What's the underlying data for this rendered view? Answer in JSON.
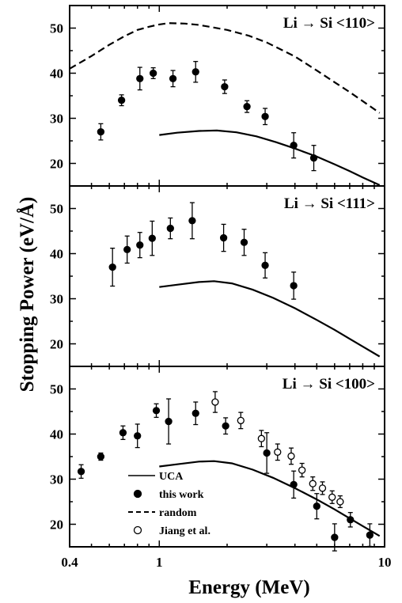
{
  "chart_data": {
    "type": "scatter",
    "xlabel": "Energy (MeV)",
    "ylabel": "Stopping Power (eV/Å)",
    "x_scale": "log",
    "xlim": [
      0.4,
      10
    ],
    "x_ticks": [
      {
        "value": 0.4,
        "label": "0.4"
      },
      {
        "value": 1,
        "label": "1"
      },
      {
        "value": 10,
        "label": "10"
      }
    ],
    "legend": {
      "placement": "lower-left of bottom panel",
      "entries": [
        {
          "label": "UCA",
          "marker": "solid-line"
        },
        {
          "label": "this work",
          "marker": "filled-circle"
        },
        {
          "label": "random",
          "marker": "dashed-line"
        },
        {
          "label": "Jiang et al.",
          "marker": "open-circle"
        }
      ]
    },
    "panels": [
      {
        "label": "Li → Si <110>",
        "ylim": [
          15,
          55
        ],
        "y_ticks": [
          20,
          30,
          40,
          50
        ],
        "series": [
          {
            "name": "this work",
            "marker": "filled-circle",
            "points": [
              {
                "x": 0.55,
                "y": 27.0,
                "err": 1.8
              },
              {
                "x": 0.68,
                "y": 34.0,
                "err": 1.2
              },
              {
                "x": 0.82,
                "y": 38.8,
                "err": 2.5
              },
              {
                "x": 0.94,
                "y": 40.0,
                "err": 1.2
              },
              {
                "x": 1.15,
                "y": 38.8,
                "err": 1.8
              },
              {
                "x": 1.45,
                "y": 40.3,
                "err": 2.3
              },
              {
                "x": 1.95,
                "y": 37.0,
                "err": 1.5
              },
              {
                "x": 2.45,
                "y": 32.6,
                "err": 1.3
              },
              {
                "x": 2.95,
                "y": 30.4,
                "err": 1.8
              },
              {
                "x": 3.95,
                "y": 24.0,
                "err": 2.8
              },
              {
                "x": 4.85,
                "y": 21.2,
                "err": 2.8
              }
            ]
          },
          {
            "name": "random",
            "style": "dashed",
            "points": [
              {
                "x": 0.4,
                "y": 41.0
              },
              {
                "x": 0.5,
                "y": 43.8
              },
              {
                "x": 0.6,
                "y": 46.3
              },
              {
                "x": 0.7,
                "y": 48.2
              },
              {
                "x": 0.8,
                "y": 49.6
              },
              {
                "x": 0.9,
                "y": 50.3
              },
              {
                "x": 1.0,
                "y": 50.8
              },
              {
                "x": 1.1,
                "y": 51.1
              },
              {
                "x": 1.3,
                "y": 51.0
              },
              {
                "x": 1.5,
                "y": 50.7
              },
              {
                "x": 2.0,
                "y": 49.6
              },
              {
                "x": 2.5,
                "y": 48.3
              },
              {
                "x": 3.0,
                "y": 46.8
              },
              {
                "x": 4.0,
                "y": 43.7
              },
              {
                "x": 5.0,
                "y": 40.6
              },
              {
                "x": 6.0,
                "y": 38.0
              },
              {
                "x": 7.0,
                "y": 35.8
              },
              {
                "x": 8.0,
                "y": 33.8
              },
              {
                "x": 9.5,
                "y": 31.2
              }
            ]
          },
          {
            "name": "UCA",
            "style": "solid",
            "points": [
              {
                "x": 1.0,
                "y": 26.3
              },
              {
                "x": 1.2,
                "y": 26.8
              },
              {
                "x": 1.5,
                "y": 27.2
              },
              {
                "x": 1.8,
                "y": 27.3
              },
              {
                "x": 2.2,
                "y": 26.9
              },
              {
                "x": 2.7,
                "y": 26.0
              },
              {
                "x": 3.3,
                "y": 24.7
              },
              {
                "x": 4.0,
                "y": 23.3
              },
              {
                "x": 5.0,
                "y": 21.5
              },
              {
                "x": 6.0,
                "y": 19.8
              },
              {
                "x": 7.0,
                "y": 18.3
              },
              {
                "x": 8.0,
                "y": 16.9
              },
              {
                "x": 9.5,
                "y": 15.2
              }
            ]
          }
        ]
      },
      {
        "label": "Li → Si <111>",
        "ylim": [
          15,
          55
        ],
        "y_ticks": [
          20,
          30,
          40,
          50
        ],
        "series": [
          {
            "name": "this work",
            "marker": "filled-circle",
            "points": [
              {
                "x": 0.62,
                "y": 37.0,
                "err": 4.2
              },
              {
                "x": 0.72,
                "y": 40.9,
                "err": 3.0
              },
              {
                "x": 0.82,
                "y": 41.9,
                "err": 2.8
              },
              {
                "x": 0.93,
                "y": 43.4,
                "err": 3.8
              },
              {
                "x": 1.12,
                "y": 45.6,
                "err": 2.3
              },
              {
                "x": 1.4,
                "y": 47.3,
                "err": 4.0
              },
              {
                "x": 1.93,
                "y": 43.5,
                "err": 3.0
              },
              {
                "x": 2.38,
                "y": 42.5,
                "err": 2.9
              },
              {
                "x": 2.95,
                "y": 37.4,
                "err": 2.8
              },
              {
                "x": 3.95,
                "y": 32.9,
                "err": 3.0
              }
            ]
          },
          {
            "name": "UCA",
            "style": "solid",
            "points": [
              {
                "x": 1.0,
                "y": 32.6
              },
              {
                "x": 1.2,
                "y": 33.1
              },
              {
                "x": 1.5,
                "y": 33.7
              },
              {
                "x": 1.75,
                "y": 33.9
              },
              {
                "x": 2.1,
                "y": 33.4
              },
              {
                "x": 2.6,
                "y": 32.0
              },
              {
                "x": 3.2,
                "y": 30.2
              },
              {
                "x": 4.0,
                "y": 27.9
              },
              {
                "x": 5.0,
                "y": 25.3
              },
              {
                "x": 6.0,
                "y": 23.1
              },
              {
                "x": 7.0,
                "y": 21.1
              },
              {
                "x": 8.0,
                "y": 19.4
              },
              {
                "x": 9.5,
                "y": 17.2
              }
            ]
          }
        ]
      },
      {
        "label": "Li → Si <100>",
        "ylim": [
          15,
          55
        ],
        "y_ticks": [
          20,
          30,
          40,
          50
        ],
        "series": [
          {
            "name": "this work",
            "marker": "filled-circle",
            "points": [
              {
                "x": 0.45,
                "y": 31.7,
                "err": 1.5
              },
              {
                "x": 0.55,
                "y": 35.0,
                "err": 0.8
              },
              {
                "x": 0.69,
                "y": 40.3,
                "err": 1.5
              },
              {
                "x": 0.8,
                "y": 39.6,
                "err": 2.6
              },
              {
                "x": 0.97,
                "y": 45.2,
                "err": 1.5
              },
              {
                "x": 1.1,
                "y": 42.8,
                "err": 5.0
              },
              {
                "x": 1.45,
                "y": 44.6,
                "err": 2.5
              },
              {
                "x": 1.97,
                "y": 41.8,
                "err": 1.8
              },
              {
                "x": 3.0,
                "y": 35.8,
                "err": 4.5
              },
              {
                "x": 3.95,
                "y": 28.8,
                "err": 3.0
              },
              {
                "x": 5.0,
                "y": 24.0,
                "err": 2.8
              },
              {
                "x": 6.0,
                "y": 17.1,
                "err": 3.0
              },
              {
                "x": 7.05,
                "y": 21.0,
                "err": 1.6
              },
              {
                "x": 8.6,
                "y": 17.6,
                "err": 2.5
              }
            ]
          },
          {
            "name": "Jiang et al.",
            "marker": "open-circle",
            "points": [
              {
                "x": 1.77,
                "y": 47.1,
                "err": 2.3
              },
              {
                "x": 2.3,
                "y": 43.0,
                "err": 1.8
              },
              {
                "x": 2.84,
                "y": 39.0,
                "err": 1.8
              },
              {
                "x": 3.35,
                "y": 36.0,
                "err": 1.8
              },
              {
                "x": 3.85,
                "y": 35.1,
                "err": 1.8
              },
              {
                "x": 4.3,
                "y": 32.0,
                "err": 1.5
              },
              {
                "x": 4.8,
                "y": 29.0,
                "err": 1.5
              },
              {
                "x": 5.3,
                "y": 28.0,
                "err": 1.4
              },
              {
                "x": 5.85,
                "y": 26.0,
                "err": 1.4
              },
              {
                "x": 6.35,
                "y": 25.0,
                "err": 1.3
              }
            ]
          },
          {
            "name": "UCA",
            "style": "solid",
            "points": [
              {
                "x": 1.0,
                "y": 32.8
              },
              {
                "x": 1.2,
                "y": 33.3
              },
              {
                "x": 1.5,
                "y": 33.9
              },
              {
                "x": 1.75,
                "y": 34.0
              },
              {
                "x": 2.1,
                "y": 33.5
              },
              {
                "x": 2.6,
                "y": 32.1
              },
              {
                "x": 3.2,
                "y": 30.3
              },
              {
                "x": 4.0,
                "y": 28.0
              },
              {
                "x": 5.0,
                "y": 25.5
              },
              {
                "x": 6.0,
                "y": 23.3
              },
              {
                "x": 7.0,
                "y": 21.3
              },
              {
                "x": 8.0,
                "y": 19.6
              },
              {
                "x": 9.5,
                "y": 17.4
              }
            ]
          }
        ]
      }
    ]
  }
}
